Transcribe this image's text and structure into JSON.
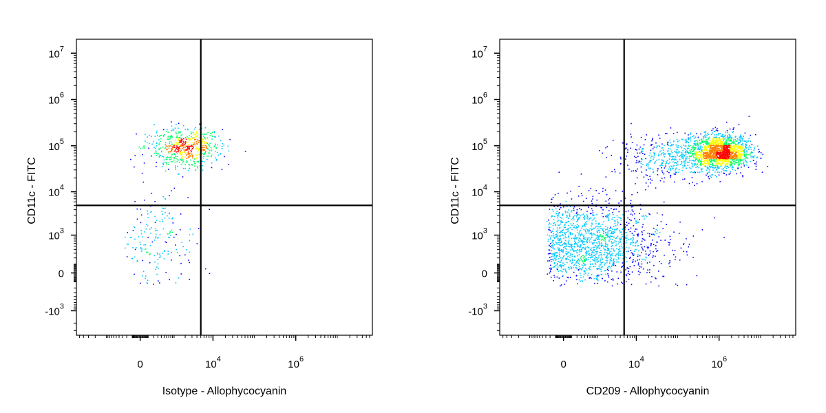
{
  "chart_data": [
    {
      "type": "scatter",
      "title": "",
      "xlabel": "Isotype - Allophycocyanin",
      "ylabel": "CD11c - FITC",
      "x_scale": "biexponential",
      "y_scale": "biexponential",
      "x_ticks": [
        {
          "value": 0,
          "base": "0",
          "exp": ""
        },
        {
          "value": 10000,
          "base": "10",
          "exp": "4"
        },
        {
          "value": 1000000,
          "base": "10",
          "exp": "6"
        }
      ],
      "y_ticks": [
        {
          "value": -1000,
          "base": "-10",
          "exp": "3"
        },
        {
          "value": 0,
          "base": "0",
          "exp": ""
        },
        {
          "value": 1000,
          "base": "10",
          "exp": "3"
        },
        {
          "value": 10000,
          "base": "10",
          "exp": "4"
        },
        {
          "value": 100000,
          "base": "10",
          "exp": "5"
        },
        {
          "value": 1000000,
          "base": "10",
          "exp": "6"
        },
        {
          "value": 10000000,
          "base": "10",
          "exp": "7"
        }
      ],
      "gate": {
        "x": 5000,
        "y": 5000
      },
      "colormap": [
        "#0000ff",
        "#00c8ff",
        "#00ff64",
        "#ffff00",
        "#ff8000",
        "#ff0000"
      ],
      "populations": [
        {
          "x_center": 2000,
          "y_center": 95000,
          "x_log_spread": 0.45,
          "y_log_spread": 0.22,
          "count": 600
        },
        {
          "x_center": 400,
          "y_center": 800,
          "x_log_spread": 0.5,
          "y_log_spread": 0.6,
          "count": 180
        }
      ]
    },
    {
      "type": "scatter",
      "title": "",
      "xlabel": "CD209 - Allophycocyanin",
      "ylabel": "CD11c - FITC",
      "x_scale": "biexponential",
      "y_scale": "biexponential",
      "x_ticks": [
        {
          "value": 0,
          "base": "0",
          "exp": ""
        },
        {
          "value": 10000,
          "base": "10",
          "exp": "4"
        },
        {
          "value": 1000000,
          "base": "10",
          "exp": "6"
        }
      ],
      "y_ticks": [
        {
          "value": -1000,
          "base": "-10",
          "exp": "3"
        },
        {
          "value": 0,
          "base": "0",
          "exp": ""
        },
        {
          "value": 1000,
          "base": "10",
          "exp": "3"
        },
        {
          "value": 10000,
          "base": "10",
          "exp": "4"
        },
        {
          "value": 100000,
          "base": "10",
          "exp": "5"
        },
        {
          "value": 1000000,
          "base": "10",
          "exp": "6"
        },
        {
          "value": 10000000,
          "base": "10",
          "exp": "7"
        }
      ],
      "gate": {
        "x": 5000,
        "y": 5000
      },
      "colormap": [
        "#0000ff",
        "#00c8ff",
        "#00ff64",
        "#ffff00",
        "#ff8000",
        "#ff0000"
      ],
      "populations": [
        {
          "x_center": 1100000,
          "y_center": 75000,
          "x_log_spread": 0.35,
          "y_log_spread": 0.18,
          "count": 1600
        },
        {
          "x_center": 80000,
          "y_center": 60000,
          "x_log_spread": 0.7,
          "y_log_spread": 0.25,
          "count": 500
        },
        {
          "x_center": 800,
          "y_center": 700,
          "x_log_spread": 0.9,
          "y_log_spread": 0.5,
          "count": 1500
        }
      ]
    }
  ]
}
